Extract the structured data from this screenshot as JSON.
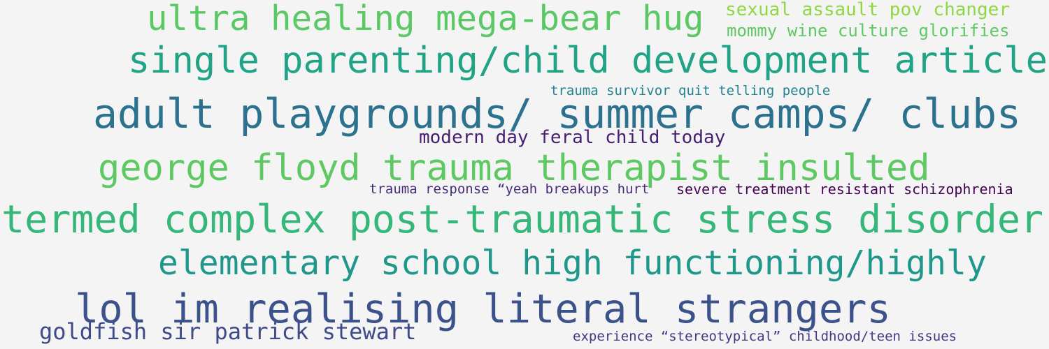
{
  "words": [
    {
      "text": "ultra healing mega-bear hug",
      "color": "#5ac864"
    },
    {
      "text": "sexual assault pov changer",
      "color": "#8fd744"
    },
    {
      "text": "mommy wine culture glorifies",
      "color": "#5ec962"
    },
    {
      "text": "single parenting/child development article",
      "color": "#20a386"
    },
    {
      "text": "trauma survivor quit telling people",
      "color": "#25858e"
    },
    {
      "text": "adult playgrounds/ summer camps/ clubs",
      "color": "#2c728e"
    },
    {
      "text": "modern day feral child today",
      "color": "#481f70"
    },
    {
      "text": "george floyd trauma therapist insulted",
      "color": "#5ec962"
    },
    {
      "text": "trauma response “yeah breakups hurt",
      "color": "#472c7a"
    },
    {
      "text": "severe treatment resistant schizophrenia",
      "color": "#440154"
    },
    {
      "text": "termed complex post-traumatic stress disorder",
      "color": "#35b779"
    },
    {
      "text": "elementary school high functioning/highly",
      "color": "#1f988b"
    },
    {
      "text": "lol im realising literal strangers",
      "color": "#3b528b"
    },
    {
      "text": "goldfish sir patrick stewart",
      "color": "#3e4a89"
    },
    {
      "text": "experience “stereotypical” childhood/teen issues",
      "color": "#453781"
    }
  ]
}
